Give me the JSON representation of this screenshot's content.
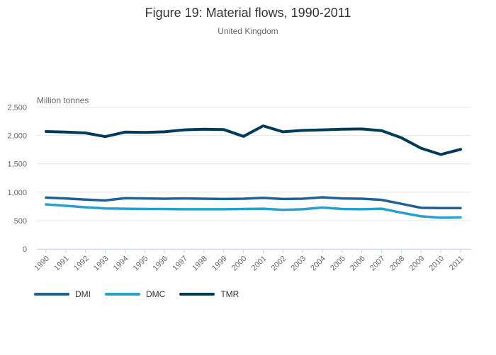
{
  "palette": {
    "grid_line": "#e6e6e6",
    "axis_line": "#ccd6eb",
    "title_text": "#333333",
    "muted_text": "#666666",
    "legend_text": "#333333"
  },
  "chart_data": {
    "type": "line",
    "title": "Figure 19: Material flows, 1990-2011",
    "subtitle": "United Kingdom",
    "ylabel": "Million tonnes",
    "xlabel": "",
    "categories": [
      "1990",
      "1991",
      "1992",
      "1993",
      "1994",
      "1995",
      "1996",
      "1997",
      "1998",
      "1999",
      "2000",
      "2001",
      "2002",
      "2003",
      "2004",
      "2005",
      "2006",
      "2007",
      "2008",
      "2009",
      "2010",
      "2011"
    ],
    "ylim": [
      0,
      2500
    ],
    "ytick_values": [
      0,
      500,
      1000,
      1500,
      2000,
      2500
    ],
    "ytick_labels": [
      "0",
      "500",
      "1,000",
      "1,500",
      "2,000",
      "2,500"
    ],
    "grid": true,
    "legend_position": "bottom-left",
    "series": [
      {
        "name": "DMI",
        "color": "#206095",
        "values": [
          905,
          890,
          870,
          855,
          895,
          890,
          885,
          890,
          885,
          880,
          885,
          900,
          880,
          885,
          910,
          890,
          885,
          865,
          795,
          725,
          720,
          720
        ]
      },
      {
        "name": "DMC",
        "color": "#27a0cc",
        "values": [
          785,
          760,
          735,
          715,
          710,
          705,
          705,
          700,
          700,
          700,
          705,
          710,
          690,
          700,
          730,
          705,
          700,
          710,
          640,
          575,
          550,
          555
        ]
      },
      {
        "name": "TMR",
        "color": "#003c57",
        "values": [
          2070,
          2060,
          2045,
          1980,
          2060,
          2055,
          2065,
          2100,
          2110,
          2105,
          1985,
          2170,
          2065,
          2090,
          2100,
          2110,
          2115,
          2085,
          1960,
          1775,
          1665,
          1755
        ]
      }
    ]
  }
}
